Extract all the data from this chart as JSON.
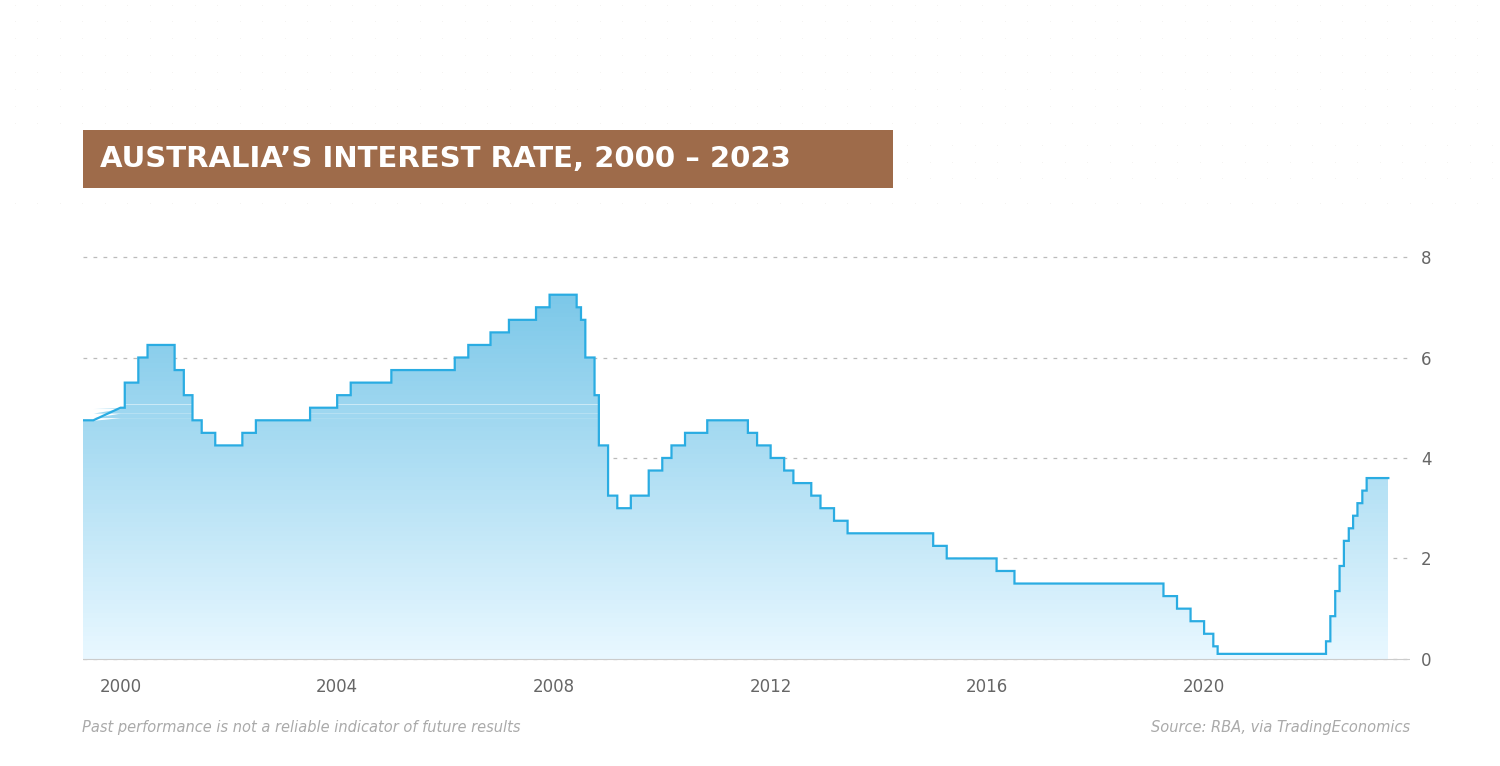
{
  "title": "AUSTRALIA’S INTEREST RATE, 2000 – 2023",
  "title_bg_color": "#9e6b4a",
  "title_text_color": "#ffffff",
  "bg_color": "#ffffff",
  "dot_color": "#c8c0b8",
  "line_color": "#2aace2",
  "fill_color_top": "#7ec8e8",
  "fill_color_bottom": "#e8f5fc",
  "grid_color": "#bbbbbb",
  "footer_left": "Past performance is not a reliable indicator of future results",
  "footer_right": "Source: RBA, via TradingEconomics",
  "footer_color": "#aaaaaa",
  "yticks": [
    0,
    2,
    4,
    6,
    8
  ],
  "xticks": [
    2000,
    2004,
    2008,
    2012,
    2016,
    2020
  ],
  "xlim": [
    1999.3,
    2023.8
  ],
  "ylim": [
    -0.15,
    9.0
  ],
  "data": [
    [
      1999.3,
      4.75
    ],
    [
      1999.5,
      4.75
    ],
    [
      2000.0,
      5.0
    ],
    [
      2000.08,
      5.0
    ],
    [
      2000.08,
      5.5
    ],
    [
      2000.33,
      5.5
    ],
    [
      2000.33,
      6.0
    ],
    [
      2000.5,
      6.0
    ],
    [
      2000.5,
      6.25
    ],
    [
      2000.75,
      6.25
    ],
    [
      2001.0,
      6.25
    ],
    [
      2001.0,
      5.75
    ],
    [
      2001.17,
      5.75
    ],
    [
      2001.17,
      5.25
    ],
    [
      2001.33,
      5.25
    ],
    [
      2001.33,
      4.75
    ],
    [
      2001.5,
      4.75
    ],
    [
      2001.5,
      4.5
    ],
    [
      2001.75,
      4.5
    ],
    [
      2001.75,
      4.25
    ],
    [
      2002.25,
      4.25
    ],
    [
      2002.25,
      4.5
    ],
    [
      2002.5,
      4.5
    ],
    [
      2002.5,
      4.75
    ],
    [
      2003.5,
      4.75
    ],
    [
      2003.5,
      5.0
    ],
    [
      2004.0,
      5.0
    ],
    [
      2004.0,
      5.25
    ],
    [
      2004.25,
      5.25
    ],
    [
      2004.25,
      5.5
    ],
    [
      2005.0,
      5.5
    ],
    [
      2005.0,
      5.75
    ],
    [
      2006.17,
      5.75
    ],
    [
      2006.17,
      6.0
    ],
    [
      2006.42,
      6.0
    ],
    [
      2006.42,
      6.25
    ],
    [
      2006.83,
      6.25
    ],
    [
      2006.83,
      6.5
    ],
    [
      2007.17,
      6.5
    ],
    [
      2007.17,
      6.75
    ],
    [
      2007.67,
      6.75
    ],
    [
      2007.67,
      7.0
    ],
    [
      2007.92,
      7.0
    ],
    [
      2007.92,
      7.25
    ],
    [
      2008.42,
      7.25
    ],
    [
      2008.42,
      7.0
    ],
    [
      2008.5,
      7.0
    ],
    [
      2008.5,
      6.75
    ],
    [
      2008.58,
      6.75
    ],
    [
      2008.58,
      6.0
    ],
    [
      2008.75,
      6.0
    ],
    [
      2008.75,
      5.25
    ],
    [
      2008.83,
      5.25
    ],
    [
      2008.83,
      4.25
    ],
    [
      2009.0,
      4.25
    ],
    [
      2009.0,
      3.25
    ],
    [
      2009.17,
      3.25
    ],
    [
      2009.17,
      3.0
    ],
    [
      2009.42,
      3.0
    ],
    [
      2009.42,
      3.25
    ],
    [
      2009.75,
      3.25
    ],
    [
      2009.75,
      3.75
    ],
    [
      2010.0,
      3.75
    ],
    [
      2010.0,
      4.0
    ],
    [
      2010.17,
      4.0
    ],
    [
      2010.17,
      4.25
    ],
    [
      2010.42,
      4.25
    ],
    [
      2010.42,
      4.5
    ],
    [
      2010.83,
      4.5
    ],
    [
      2010.83,
      4.75
    ],
    [
      2011.58,
      4.75
    ],
    [
      2011.58,
      4.5
    ],
    [
      2011.75,
      4.5
    ],
    [
      2011.75,
      4.25
    ],
    [
      2012.0,
      4.25
    ],
    [
      2012.0,
      4.0
    ],
    [
      2012.25,
      4.0
    ],
    [
      2012.25,
      3.75
    ],
    [
      2012.42,
      3.75
    ],
    [
      2012.42,
      3.5
    ],
    [
      2012.75,
      3.5
    ],
    [
      2012.75,
      3.25
    ],
    [
      2012.92,
      3.25
    ],
    [
      2012.92,
      3.0
    ],
    [
      2013.17,
      3.0
    ],
    [
      2013.17,
      2.75
    ],
    [
      2013.42,
      2.75
    ],
    [
      2013.42,
      2.5
    ],
    [
      2015.0,
      2.5
    ],
    [
      2015.0,
      2.25
    ],
    [
      2015.25,
      2.25
    ],
    [
      2015.25,
      2.0
    ],
    [
      2016.17,
      2.0
    ],
    [
      2016.17,
      1.75
    ],
    [
      2016.5,
      1.75
    ],
    [
      2016.5,
      1.5
    ],
    [
      2019.25,
      1.5
    ],
    [
      2019.25,
      1.25
    ],
    [
      2019.5,
      1.25
    ],
    [
      2019.5,
      1.0
    ],
    [
      2019.75,
      1.0
    ],
    [
      2019.75,
      0.75
    ],
    [
      2020.0,
      0.75
    ],
    [
      2020.0,
      0.5
    ],
    [
      2020.17,
      0.5
    ],
    [
      2020.17,
      0.25
    ],
    [
      2020.25,
      0.25
    ],
    [
      2020.25,
      0.1
    ],
    [
      2022.25,
      0.1
    ],
    [
      2022.25,
      0.35
    ],
    [
      2022.33,
      0.35
    ],
    [
      2022.33,
      0.85
    ],
    [
      2022.42,
      0.85
    ],
    [
      2022.42,
      1.35
    ],
    [
      2022.5,
      1.35
    ],
    [
      2022.5,
      1.85
    ],
    [
      2022.58,
      1.85
    ],
    [
      2022.58,
      2.35
    ],
    [
      2022.67,
      2.35
    ],
    [
      2022.67,
      2.6
    ],
    [
      2022.75,
      2.6
    ],
    [
      2022.75,
      2.85
    ],
    [
      2022.83,
      2.85
    ],
    [
      2022.83,
      3.1
    ],
    [
      2022.92,
      3.1
    ],
    [
      2022.92,
      3.35
    ],
    [
      2023.0,
      3.35
    ],
    [
      2023.0,
      3.6
    ],
    [
      2023.4,
      3.6
    ]
  ]
}
